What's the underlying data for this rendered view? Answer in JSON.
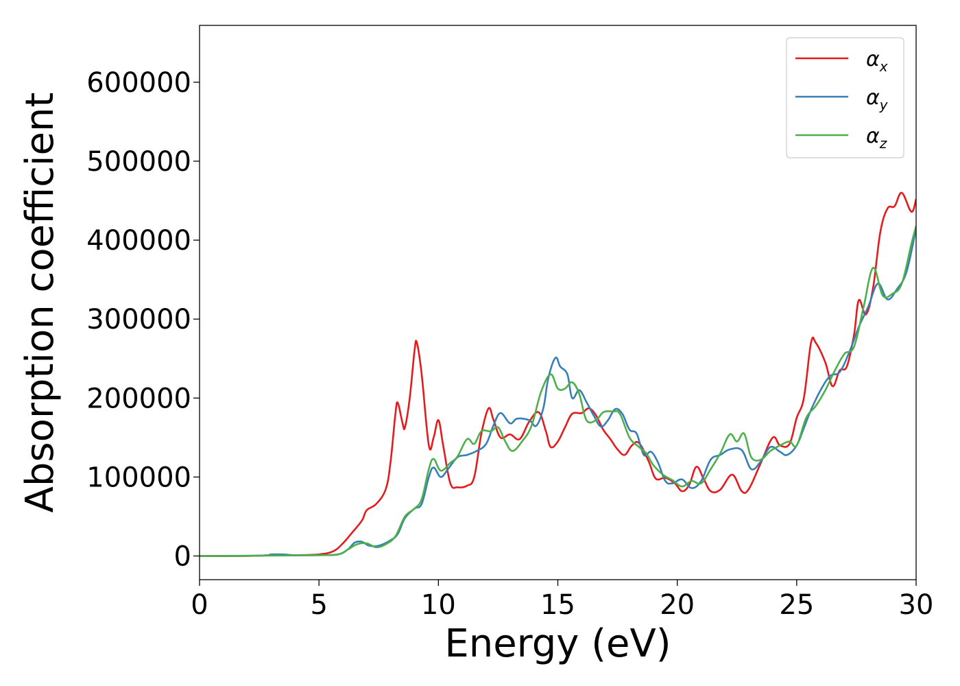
{
  "chart_data": {
    "type": "line",
    "title": "",
    "xlabel": "Energy (eV)",
    "ylabel": "Absorption coefficient",
    "xlim": [
      0,
      30
    ],
    "ylim": [
      -30000,
      672000
    ],
    "xticks": [
      0,
      5,
      10,
      15,
      20,
      25,
      30
    ],
    "xtick_labels": [
      "0",
      "5",
      "10",
      "15",
      "20",
      "25",
      "30"
    ],
    "yticks": [
      0,
      100000,
      200000,
      300000,
      400000,
      500000,
      600000
    ],
    "ytick_labels": [
      "0",
      "100000",
      "200000",
      "300000",
      "400000",
      "500000",
      "600000"
    ],
    "grid": false,
    "legend_position": "top-right",
    "series": [
      {
        "name": "α_x",
        "name_base": "α",
        "name_sub": "x",
        "color": "#e41a1c",
        "points": [
          [
            0,
            0
          ],
          [
            2,
            0
          ],
          [
            3,
            1000
          ],
          [
            4,
            1000
          ],
          [
            5,
            2000
          ],
          [
            5.6,
            6000
          ],
          [
            6,
            16000
          ],
          [
            6.4,
            30000
          ],
          [
            6.8,
            45000
          ],
          [
            7,
            58000
          ],
          [
            7.4,
            66000
          ],
          [
            7.8,
            85000
          ],
          [
            8,
            120000
          ],
          [
            8.2,
            180000
          ],
          [
            8.3,
            194000
          ],
          [
            8.5,
            168000
          ],
          [
            8.6,
            163000
          ],
          [
            8.8,
            200000
          ],
          [
            9,
            260000
          ],
          [
            9.1,
            270000
          ],
          [
            9.3,
            230000
          ],
          [
            9.6,
            140000
          ],
          [
            9.8,
            150000
          ],
          [
            10,
            172000
          ],
          [
            10.2,
            140000
          ],
          [
            10.5,
            92000
          ],
          [
            10.8,
            87000
          ],
          [
            11.2,
            89000
          ],
          [
            11.5,
            100000
          ],
          [
            11.8,
            155000
          ],
          [
            12.1,
            187000
          ],
          [
            12.3,
            173000
          ],
          [
            12.6,
            150000
          ],
          [
            13,
            154000
          ],
          [
            13.4,
            148000
          ],
          [
            13.8,
            170000
          ],
          [
            14.2,
            182000
          ],
          [
            14.5,
            158000
          ],
          [
            14.7,
            138000
          ],
          [
            15,
            145000
          ],
          [
            15.3,
            163000
          ],
          [
            15.6,
            180000
          ],
          [
            16,
            181000
          ],
          [
            16.3,
            187000
          ],
          [
            16.6,
            178000
          ],
          [
            16.9,
            160000
          ],
          [
            17.2,
            148000
          ],
          [
            17.5,
            135000
          ],
          [
            17.8,
            128000
          ],
          [
            18.1,
            140000
          ],
          [
            18.4,
            143000
          ],
          [
            18.8,
            120000
          ],
          [
            19.1,
            98000
          ],
          [
            19.5,
            99000
          ],
          [
            19.9,
            92000
          ],
          [
            20.2,
            82000
          ],
          [
            20.5,
            90000
          ],
          [
            20.8,
            113000
          ],
          [
            21.1,
            98000
          ],
          [
            21.4,
            82000
          ],
          [
            21.8,
            84000
          ],
          [
            22.3,
            103000
          ],
          [
            22.7,
            82000
          ],
          [
            23,
            85000
          ],
          [
            23.5,
            118000
          ],
          [
            24,
            150000
          ],
          [
            24.3,
            140000
          ],
          [
            24.7,
            142000
          ],
          [
            25,
            175000
          ],
          [
            25.3,
            200000
          ],
          [
            25.6,
            270000
          ],
          [
            25.8,
            270000
          ],
          [
            26.2,
            245000
          ],
          [
            26.5,
            215000
          ],
          [
            26.8,
            235000
          ],
          [
            27.1,
            240000
          ],
          [
            27.4,
            280000
          ],
          [
            27.6,
            324000
          ],
          [
            27.9,
            306000
          ],
          [
            28.2,
            340000
          ],
          [
            28.5,
            410000
          ],
          [
            28.8,
            440000
          ],
          [
            29.1,
            443000
          ],
          [
            29.4,
            460000
          ],
          [
            29.8,
            436000
          ],
          [
            30,
            452000
          ]
        ]
      },
      {
        "name": "α_y",
        "name_base": "α",
        "name_sub": "y",
        "color": "#377eb8",
        "points": [
          [
            0,
            0
          ],
          [
            2.6,
            500
          ],
          [
            3,
            2000
          ],
          [
            3.5,
            2000
          ],
          [
            4,
            1000
          ],
          [
            5,
            1000
          ],
          [
            5.8,
            2000
          ],
          [
            6.2,
            8000
          ],
          [
            6.5,
            17000
          ],
          [
            6.8,
            18000
          ],
          [
            7.1,
            13000
          ],
          [
            7.5,
            13000
          ],
          [
            8,
            20000
          ],
          [
            8.3,
            28000
          ],
          [
            8.6,
            48000
          ],
          [
            9,
            60000
          ],
          [
            9.3,
            66000
          ],
          [
            9.6,
            100000
          ],
          [
            9.8,
            112000
          ],
          [
            10.1,
            100000
          ],
          [
            10.4,
            110000
          ],
          [
            10.8,
            125000
          ],
          [
            11.2,
            128000
          ],
          [
            11.6,
            133000
          ],
          [
            12,
            142000
          ],
          [
            12.3,
            165000
          ],
          [
            12.6,
            181000
          ],
          [
            13,
            168000
          ],
          [
            13.3,
            174000
          ],
          [
            13.8,
            172000
          ],
          [
            14.1,
            165000
          ],
          [
            14.4,
            188000
          ],
          [
            14.6,
            225000
          ],
          [
            14.9,
            251000
          ],
          [
            15.1,
            240000
          ],
          [
            15.4,
            230000
          ],
          [
            15.6,
            200000
          ],
          [
            15.9,
            210000
          ],
          [
            16.2,
            195000
          ],
          [
            16.5,
            178000
          ],
          [
            16.8,
            164000
          ],
          [
            17.1,
            172000
          ],
          [
            17.4,
            186000
          ],
          [
            17.7,
            180000
          ],
          [
            18,
            160000
          ],
          [
            18.3,
            155000
          ],
          [
            18.6,
            128000
          ],
          [
            18.9,
            132000
          ],
          [
            19.2,
            118000
          ],
          [
            19.5,
            95000
          ],
          [
            19.8,
            92000
          ],
          [
            20.2,
            97000
          ],
          [
            20.6,
            86000
          ],
          [
            21,
            95000
          ],
          [
            21.4,
            122000
          ],
          [
            21.8,
            128000
          ],
          [
            22.2,
            135000
          ],
          [
            22.7,
            134000
          ],
          [
            23.1,
            110000
          ],
          [
            23.5,
            120000
          ],
          [
            23.9,
            138000
          ],
          [
            24.3,
            132000
          ],
          [
            24.6,
            128000
          ],
          [
            25,
            140000
          ],
          [
            25.3,
            162000
          ],
          [
            25.6,
            185000
          ],
          [
            26,
            210000
          ],
          [
            26.4,
            228000
          ],
          [
            26.8,
            233000
          ],
          [
            27.2,
            258000
          ],
          [
            27.6,
            290000
          ],
          [
            28,
            316000
          ],
          [
            28.4,
            345000
          ],
          [
            28.8,
            325000
          ],
          [
            29.2,
            338000
          ],
          [
            29.6,
            360000
          ],
          [
            30,
            415000
          ]
        ]
      },
      {
        "name": "α_z",
        "name_base": "α",
        "name_sub": "z",
        "color": "#4daf4a",
        "points": [
          [
            0,
            0
          ],
          [
            3,
            500
          ],
          [
            5,
            1000
          ],
          [
            5.8,
            2000
          ],
          [
            6.2,
            8000
          ],
          [
            6.6,
            15000
          ],
          [
            7,
            16000
          ],
          [
            7.4,
            11000
          ],
          [
            7.8,
            15000
          ],
          [
            8.2,
            25000
          ],
          [
            8.6,
            50000
          ],
          [
            9,
            60000
          ],
          [
            9.3,
            72000
          ],
          [
            9.6,
            110000
          ],
          [
            9.8,
            123000
          ],
          [
            10.1,
            108000
          ],
          [
            10.5,
            118000
          ],
          [
            10.8,
            126000
          ],
          [
            11.2,
            148000
          ],
          [
            11.5,
            142000
          ],
          [
            11.8,
            158000
          ],
          [
            12.2,
            158000
          ],
          [
            12.5,
            163000
          ],
          [
            12.8,
            145000
          ],
          [
            13.1,
            133000
          ],
          [
            13.5,
            145000
          ],
          [
            13.9,
            165000
          ],
          [
            14.3,
            208000
          ],
          [
            14.7,
            230000
          ],
          [
            15,
            212000
          ],
          [
            15.3,
            212000
          ],
          [
            15.6,
            220000
          ],
          [
            15.9,
            205000
          ],
          [
            16.2,
            172000
          ],
          [
            16.6,
            172000
          ],
          [
            16.9,
            182000
          ],
          [
            17.3,
            183000
          ],
          [
            17.6,
            180000
          ],
          [
            18,
            150000
          ],
          [
            18.4,
            138000
          ],
          [
            18.7,
            130000
          ],
          [
            19,
            115000
          ],
          [
            19.4,
            103000
          ],
          [
            19.8,
            96000
          ],
          [
            20.2,
            88000
          ],
          [
            20.6,
            95000
          ],
          [
            21,
            92000
          ],
          [
            21.4,
            110000
          ],
          [
            21.8,
            130000
          ],
          [
            22.2,
            154000
          ],
          [
            22.5,
            145000
          ],
          [
            22.8,
            155000
          ],
          [
            23.1,
            125000
          ],
          [
            23.5,
            122000
          ],
          [
            23.9,
            133000
          ],
          [
            24.3,
            140000
          ],
          [
            24.7,
            145000
          ],
          [
            25,
            140000
          ],
          [
            25.4,
            175000
          ],
          [
            25.8,
            190000
          ],
          [
            26.2,
            210000
          ],
          [
            26.6,
            235000
          ],
          [
            27,
            256000
          ],
          [
            27.4,
            265000
          ],
          [
            27.8,
            315000
          ],
          [
            28.2,
            365000
          ],
          [
            28.6,
            330000
          ],
          [
            29,
            332000
          ],
          [
            29.4,
            345000
          ],
          [
            29.8,
            395000
          ],
          [
            30,
            418000
          ]
        ]
      }
    ]
  }
}
